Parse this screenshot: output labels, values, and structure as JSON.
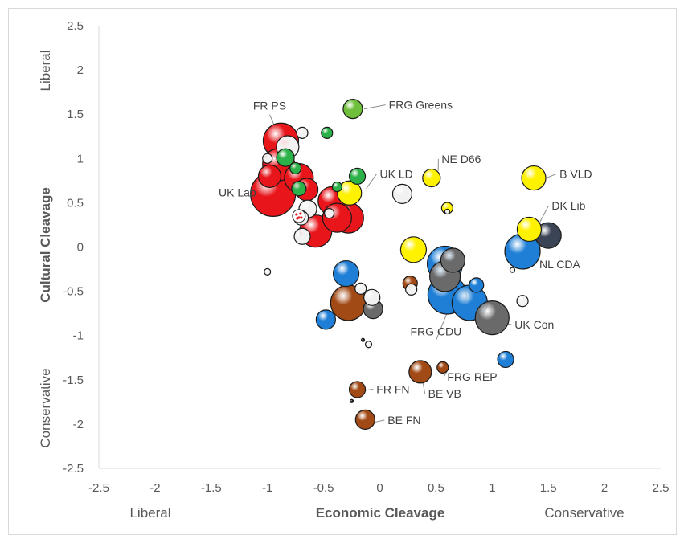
{
  "chart_data": {
    "type": "bubble",
    "xlabel": "Economic Cleavage",
    "ylabel": "Cultural Cleavage",
    "x_low_label": "Liberal",
    "x_high_label": "Conservative",
    "y_high_label": "Liberal",
    "y_low_label": "Conservative",
    "xlim": [
      -2.5,
      2.5
    ],
    "ylim": [
      -2.5,
      2.5
    ],
    "x_ticks": [
      "-2.5",
      "-2",
      "-1.5",
      "-1",
      "-0.5",
      "0",
      "0.5",
      "1",
      "1.5",
      "2",
      "2.5"
    ],
    "y_ticks": [
      "2.5",
      "2",
      "1.5",
      "1",
      "0.5",
      "0",
      "-0.5",
      "-1",
      "-1.5",
      "-2",
      "-2.5"
    ],
    "grid": false,
    "colors": {
      "red": "#e8161b",
      "green": "#2db24a",
      "lightgreen": "#6fbf3c",
      "yellow": "#fff200",
      "blue": "#1f7fd6",
      "brown": "#a24a16",
      "gray": "#6a6a6a",
      "darkslate": "#3b4454",
      "white": "#f2f2f2",
      "black": "#222222"
    },
    "points": [
      {
        "x": -0.88,
        "y": 1.2,
        "s": 22,
        "c": "red"
      },
      {
        "x": -0.9,
        "y": 0.93,
        "s": 20,
        "c": "red"
      },
      {
        "x": -0.72,
        "y": 0.78,
        "s": 18,
        "c": "red"
      },
      {
        "x": -0.98,
        "y": 0.8,
        "s": 14,
        "c": "red"
      },
      {
        "x": -0.95,
        "y": 0.6,
        "s": 28,
        "c": "red"
      },
      {
        "x": -0.65,
        "y": 0.65,
        "s": 14,
        "c": "red"
      },
      {
        "x": -0.42,
        "y": 0.52,
        "s": 18,
        "c": "red"
      },
      {
        "x": -0.28,
        "y": 0.33,
        "s": 19,
        "c": "red"
      },
      {
        "x": -0.38,
        "y": 0.33,
        "s": 18,
        "c": "red"
      },
      {
        "x": -0.57,
        "y": 0.18,
        "s": 20,
        "c": "red"
      },
      {
        "x": -0.82,
        "y": 1.13,
        "s": 14,
        "c": "white"
      },
      {
        "x": -0.69,
        "y": 1.29,
        "s": 7,
        "c": "white"
      },
      {
        "x": -1.0,
        "y": 1.0,
        "s": 6,
        "c": "white"
      },
      {
        "x": -0.64,
        "y": 0.43,
        "s": 11,
        "c": "white"
      },
      {
        "x": -0.69,
        "y": 0.12,
        "s": 10,
        "c": "white"
      },
      {
        "x": -0.7,
        "y": 0.33,
        "s": 9,
        "c": "white"
      },
      {
        "x": -0.45,
        "y": 0.38,
        "s": 6,
        "c": "white"
      },
      {
        "x": 0.2,
        "y": 0.6,
        "s": 12,
        "c": "white"
      },
      {
        "x": -0.07,
        "y": -0.57,
        "s": 10,
        "c": "white"
      },
      {
        "x": -0.17,
        "y": -0.47,
        "s": 7,
        "c": "white"
      },
      {
        "x": 0.28,
        "y": -0.48,
        "s": 7,
        "c": "white"
      },
      {
        "x": 1.27,
        "y": -0.61,
        "s": 7,
        "c": "white"
      },
      {
        "x": -0.1,
        "y": -1.1,
        "s": 4,
        "c": "white"
      },
      {
        "x": -0.72,
        "y": 0.35,
        "s": 8,
        "c": "dotted"
      },
      {
        "x": -0.84,
        "y": 1.01,
        "s": 11,
        "c": "green"
      },
      {
        "x": -0.47,
        "y": 1.29,
        "s": 7,
        "c": "green"
      },
      {
        "x": -0.75,
        "y": 0.89,
        "s": 7,
        "c": "green"
      },
      {
        "x": -0.38,
        "y": 0.68,
        "s": 6,
        "c": "green"
      },
      {
        "x": -0.72,
        "y": 0.66,
        "s": 9,
        "c": "green"
      },
      {
        "x": -0.2,
        "y": 0.8,
        "s": 10,
        "c": "green"
      },
      {
        "x": -0.24,
        "y": 1.56,
        "s": 12,
        "c": "lightgreen",
        "label": "FRG Greens"
      },
      {
        "x": 0.46,
        "y": 0.78,
        "s": 11,
        "c": "yellow"
      },
      {
        "x": 1.37,
        "y": 0.78,
        "s": 15,
        "c": "yellow"
      },
      {
        "x": -0.27,
        "y": 0.61,
        "s": 15,
        "c": "yellow"
      },
      {
        "x": 0.6,
        "y": 0.44,
        "s": 7,
        "c": "yellow"
      },
      {
        "x": 1.33,
        "y": 0.2,
        "s": 15,
        "c": "yellow"
      },
      {
        "x": 0.3,
        "y": -0.03,
        "s": 16,
        "c": "yellow"
      },
      {
        "x": 1.5,
        "y": 0.13,
        "s": 16,
        "c": "darkslate"
      },
      {
        "x": 0.65,
        "y": -0.15,
        "s": 15,
        "c": "gray"
      },
      {
        "x": 0.58,
        "y": -0.33,
        "s": 19,
        "c": "gray"
      },
      {
        "x": 1.0,
        "y": -0.8,
        "s": 21,
        "c": "gray"
      },
      {
        "x": -0.06,
        "y": -0.7,
        "s": 12,
        "c": "gray"
      },
      {
        "x": 0.58,
        "y": -0.19,
        "s": 22,
        "c": "blue"
      },
      {
        "x": 0.6,
        "y": -0.54,
        "s": 24,
        "c": "blue"
      },
      {
        "x": 0.8,
        "y": -0.63,
        "s": 22,
        "c": "blue"
      },
      {
        "x": 1.27,
        "y": -0.05,
        "s": 22,
        "c": "blue"
      },
      {
        "x": 0.86,
        "y": -0.43,
        "s": 9,
        "c": "blue"
      },
      {
        "x": -0.3,
        "y": -0.3,
        "s": 16,
        "c": "blue"
      },
      {
        "x": -0.48,
        "y": -0.82,
        "s": 12,
        "c": "blue"
      },
      {
        "x": 1.12,
        "y": -1.27,
        "s": 10,
        "c": "blue"
      },
      {
        "x": -0.28,
        "y": -0.63,
        "s": 22,
        "c": "brown"
      },
      {
        "x": 0.27,
        "y": -0.41,
        "s": 9,
        "c": "brown"
      },
      {
        "x": 0.36,
        "y": -1.41,
        "s": 14,
        "c": "brown"
      },
      {
        "x": 0.56,
        "y": -1.36,
        "s": 7,
        "c": "brown"
      },
      {
        "x": -0.2,
        "y": -1.61,
        "s": 10,
        "c": "brown"
      },
      {
        "x": -0.13,
        "y": -1.95,
        "s": 12,
        "c": "brown"
      },
      {
        "x": -1.0,
        "y": -0.28,
        "s": 4,
        "c": "white"
      },
      {
        "x": 0.6,
        "y": 0.4,
        "s": 3,
        "c": "white"
      },
      {
        "x": -0.15,
        "y": -1.05,
        "s": 2,
        "c": "black"
      },
      {
        "x": -0.25,
        "y": -1.74,
        "s": 2,
        "c": "black"
      },
      {
        "x": 1.18,
        "y": -0.26,
        "s": 3,
        "c": "white"
      }
    ],
    "annotations": [
      {
        "text": "FR PS",
        "ax": -0.88,
        "ay": 1.2,
        "tx": -0.98,
        "ty": 1.55,
        "anchor": "middle"
      },
      {
        "text": "FRG Greens",
        "ax": -0.14,
        "ay": 1.56,
        "tx": 0.08,
        "ty": 1.56,
        "anchor": "start"
      },
      {
        "text": "NE D66",
        "ax": 0.52,
        "ay": 0.86,
        "tx": 0.55,
        "ty": 0.95,
        "anchor": "start"
      },
      {
        "text": "B VLD",
        "ax": 1.48,
        "ay": 0.78,
        "tx": 1.6,
        "ty": 0.78,
        "anchor": "start"
      },
      {
        "text": "UK LD",
        "ax": -0.12,
        "ay": 0.66,
        "tx": 0.0,
        "ty": 0.78,
        "anchor": "start"
      },
      {
        "text": "UK Lab",
        "ax": -0.95,
        "ay": 0.6,
        "tx": -1.1,
        "ty": 0.57,
        "anchor": "end"
      },
      {
        "text": "DK Lib",
        "ax": 1.42,
        "ay": 0.27,
        "tx": 1.53,
        "ty": 0.42,
        "anchor": "start"
      },
      {
        "text": "NL CDA",
        "ax": 1.38,
        "ay": -0.15,
        "tx": 1.42,
        "ty": -0.24,
        "anchor": "start"
      },
      {
        "text": "FRG CDU",
        "ax": 0.62,
        "ay": -0.68,
        "tx": 0.5,
        "ty": -1.0,
        "anchor": "middle"
      },
      {
        "text": "UK Con",
        "ax": 1.07,
        "ay": -0.85,
        "tx": 1.2,
        "ty": -0.92,
        "anchor": "start"
      },
      {
        "text": "FRG REP",
        "ax": 0.6,
        "ay": -1.4,
        "tx": 0.6,
        "ty": -1.51,
        "anchor": "start"
      },
      {
        "text": "FR FN",
        "ax": -0.13,
        "ay": -1.62,
        "tx": -0.03,
        "ty": -1.65,
        "anchor": "start"
      },
      {
        "text": "BE VB",
        "ax": 0.38,
        "ay": -1.5,
        "tx": 0.43,
        "ty": -1.7,
        "anchor": "start"
      },
      {
        "text": "BE FN",
        "ax": -0.05,
        "ay": -1.98,
        "tx": 0.07,
        "ty": -2.0,
        "anchor": "start"
      }
    ]
  }
}
